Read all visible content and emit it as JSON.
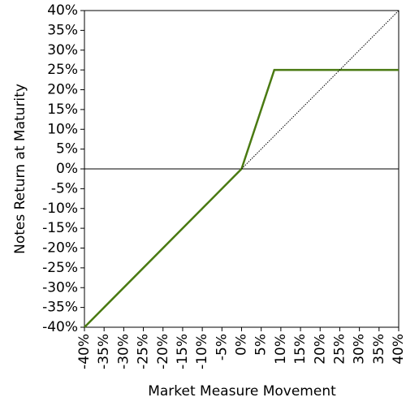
{
  "chart_data": {
    "type": "line",
    "xlabel": "Market Measure Movement",
    "ylabel": "Notes Return at Maturity",
    "series": [
      {
        "color": "#4a7a12",
        "style": "solid",
        "x": [
          -40,
          0,
          8.33,
          40
        ],
        "values": [
          -40,
          0,
          25,
          25
        ]
      },
      {
        "color": "#000000",
        "style": "dotted",
        "x": [
          0,
          40
        ],
        "values": [
          0,
          40
        ]
      }
    ],
    "reference_line_y": 0,
    "xlim": [
      -40,
      40
    ],
    "ylim": [
      -40,
      40
    ],
    "xticks": [
      {
        "value": -40,
        "label": "-40%"
      },
      {
        "value": -35,
        "label": "-35%"
      },
      {
        "value": -30,
        "label": "-30%"
      },
      {
        "value": -25,
        "label": "-25%"
      },
      {
        "value": -20,
        "label": "-20%"
      },
      {
        "value": -15,
        "label": "-15%"
      },
      {
        "value": -10,
        "label": "-10%"
      },
      {
        "value": -5,
        "label": "-5%"
      },
      {
        "value": 0,
        "label": "0%"
      },
      {
        "value": 5,
        "label": "5%"
      },
      {
        "value": 10,
        "label": "10%"
      },
      {
        "value": 15,
        "label": "15%"
      },
      {
        "value": 20,
        "label": "20%"
      },
      {
        "value": 25,
        "label": "25%"
      },
      {
        "value": 30,
        "label": "30%"
      },
      {
        "value": 35,
        "label": "35%"
      },
      {
        "value": 40,
        "label": "40%"
      }
    ],
    "yticks": [
      {
        "value": -40,
        "label": "-40%"
      },
      {
        "value": -35,
        "label": "-35%"
      },
      {
        "value": -30,
        "label": "-30%"
      },
      {
        "value": -25,
        "label": "-25%"
      },
      {
        "value": -20,
        "label": "-20%"
      },
      {
        "value": -15,
        "label": "-15%"
      },
      {
        "value": -10,
        "label": "-10%"
      },
      {
        "value": -5,
        "label": "-5%"
      },
      {
        "value": 0,
        "label": "0%"
      },
      {
        "value": 5,
        "label": "5%"
      },
      {
        "value": 10,
        "label": "10%"
      },
      {
        "value": 15,
        "label": "15%"
      },
      {
        "value": 20,
        "label": "20%"
      },
      {
        "value": 25,
        "label": "25%"
      },
      {
        "value": 30,
        "label": "30%"
      },
      {
        "value": 35,
        "label": "35%"
      },
      {
        "value": 40,
        "label": "40%"
      }
    ]
  }
}
